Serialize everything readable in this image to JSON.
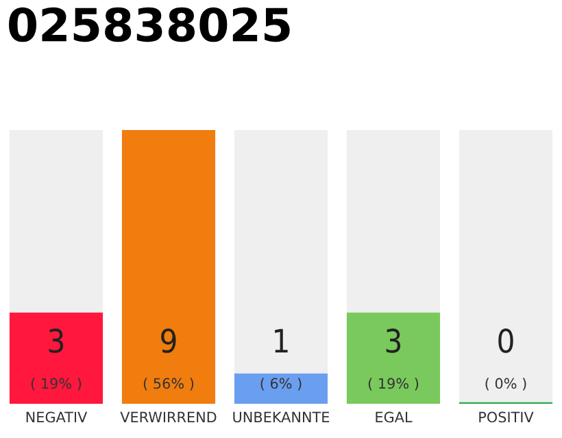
{
  "chart_data": {
    "type": "bar",
    "title": "025838025",
    "categories": [
      "NEGATIV",
      "VERWIRREND",
      "UNBEKANNTE",
      "EGAL",
      "POSITIV"
    ],
    "values": [
      3,
      9,
      1,
      3,
      0
    ],
    "colors": [
      "#ff173d",
      "#f07d0d",
      "#6a9ff0",
      "#7ac95c",
      "#2fa84f"
    ],
    "value_labels": [
      "3\n( 19% )",
      "9\n( 56% )",
      "1\n( 6% )",
      "3\n( 19% )",
      "0\n( 0% )"
    ],
    "grid": false,
    "legend": false
  }
}
